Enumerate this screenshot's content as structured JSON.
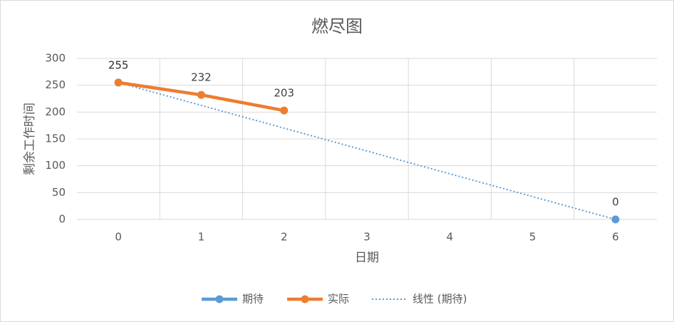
{
  "chart_data": {
    "type": "line",
    "title": "燃尽图",
    "x_label": "日期",
    "y_label": "剩余工作时间",
    "categories": [
      "0",
      "1",
      "2",
      "3",
      "4",
      "5",
      "6"
    ],
    "series": [
      {
        "name": "期待",
        "color": "#5b9bd5",
        "values": [
          255,
          null,
          null,
          null,
          null,
          null,
          0
        ],
        "markers": true,
        "data_labels": true,
        "line_style": "solid"
      },
      {
        "name": "实际",
        "color": "#ed7d31",
        "values": [
          255,
          232,
          203,
          null,
          null,
          null,
          null
        ],
        "markers": true,
        "data_labels": true,
        "line_style": "solid"
      },
      {
        "name": "线性 (期待)",
        "color": "#5b9bd5",
        "values": [
          255,
          212.5,
          170,
          127.5,
          85,
          42.5,
          0
        ],
        "markers": false,
        "data_labels": false,
        "line_style": "dotted"
      }
    ],
    "ylim": [
      0,
      300
    ],
    "yticks": [
      0,
      50,
      100,
      150,
      200,
      250,
      300
    ],
    "grid": true,
    "legend": "bottom"
  }
}
